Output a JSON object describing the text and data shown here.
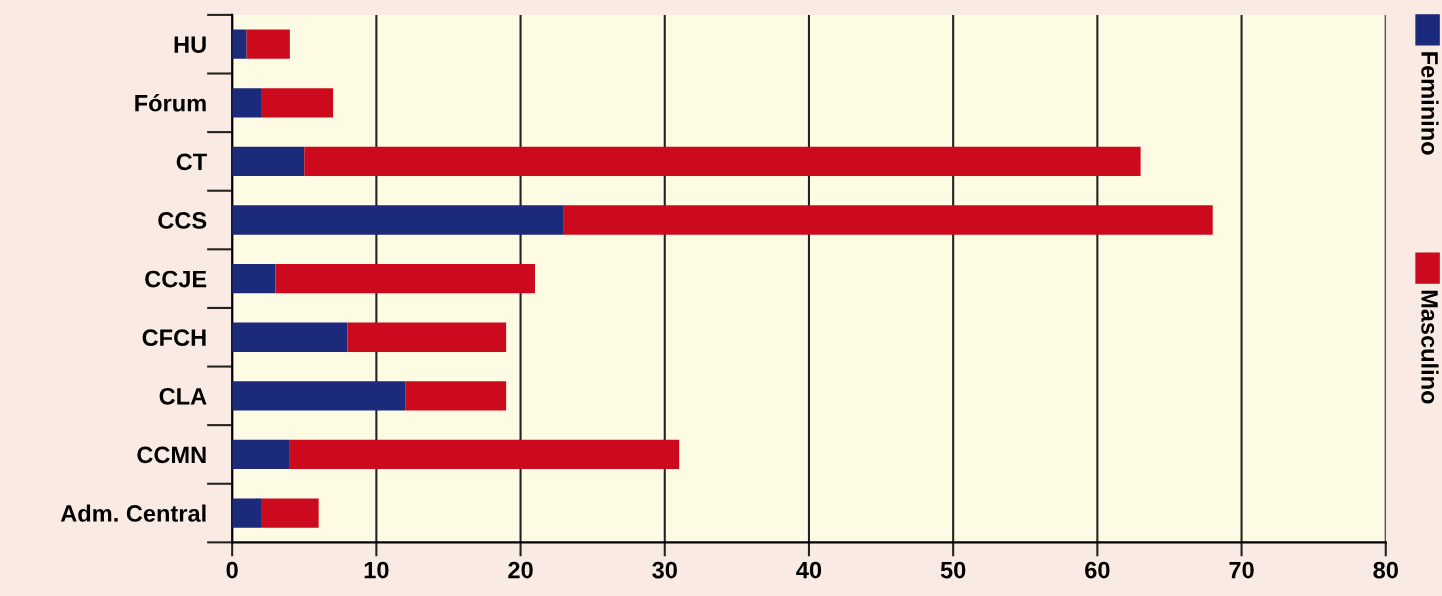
{
  "chart_data": {
    "type": "bar",
    "orientation": "horizontal",
    "stacked": true,
    "categories": [
      "HU",
      "Fórum",
      "CT",
      "CCS",
      "CCJE",
      "CFCH",
      "CLA",
      "CCMN",
      "Adm. Central"
    ],
    "series": [
      {
        "name": "Feminino",
        "color": "#1b2a7a",
        "values": [
          1,
          2,
          5,
          23,
          3,
          8,
          12,
          4,
          2
        ]
      },
      {
        "name": "Masculino",
        "color": "#cc0a1e",
        "values": [
          3,
          5,
          58,
          45,
          18,
          11,
          7,
          27,
          4
        ]
      }
    ],
    "xlim": [
      0,
      80
    ],
    "xticks": [
      0,
      10,
      20,
      30,
      40,
      50,
      60,
      70,
      80
    ],
    "grid": "x",
    "legend": "right"
  }
}
